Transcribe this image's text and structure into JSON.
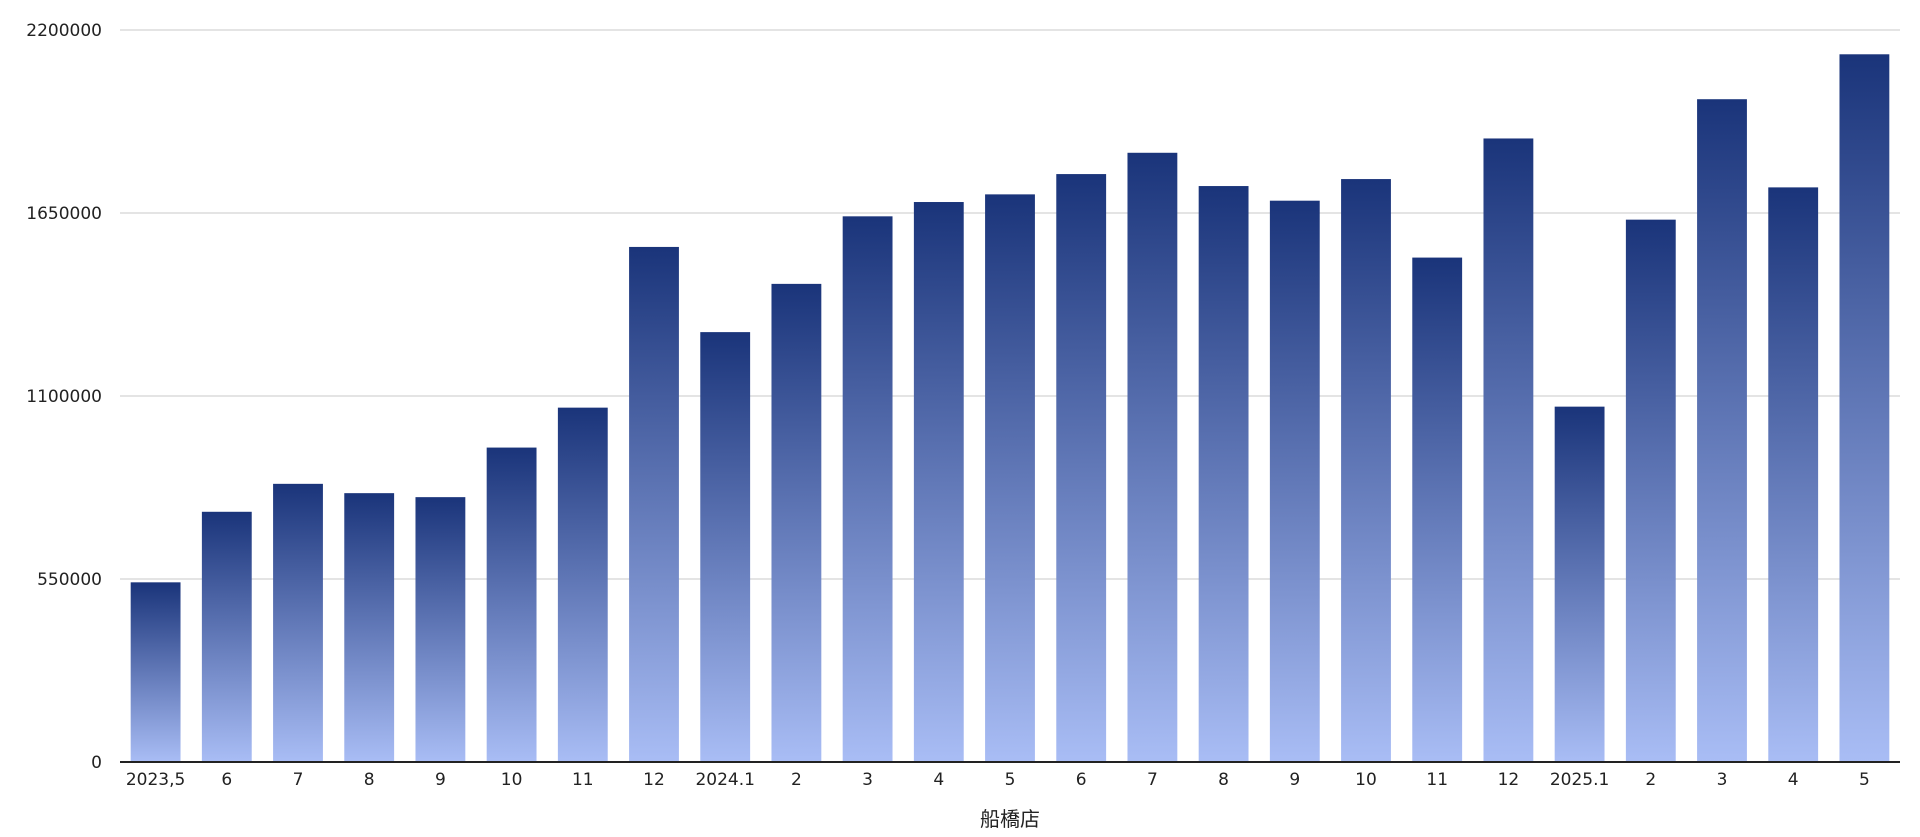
{
  "chart_data": {
    "type": "bar",
    "title": "",
    "xlabel": "船橋店",
    "ylabel": "",
    "categories": [
      "2023,5",
      "6",
      "7",
      "8",
      "9",
      "10",
      "11",
      "12",
      "2024.1",
      "2",
      "3",
      "4",
      "5",
      "6",
      "7",
      "8",
      "9",
      "10",
      "11",
      "12",
      "2025.1",
      "2",
      "3",
      "4",
      "5"
    ],
    "values": [
      540000,
      752000,
      836000,
      808000,
      796000,
      945000,
      1065000,
      1548000,
      1292000,
      1437000,
      1640000,
      1683000,
      1706000,
      1767000,
      1831000,
      1731000,
      1687000,
      1752000,
      1516000,
      1874000,
      1068000,
      1630000,
      1992000,
      1727000,
      2127000
    ],
    "ylim": [
      0,
      2200000
    ],
    "yticks": [
      0,
      550000,
      1100000,
      1650000,
      2200000
    ],
    "ytick_labels": [
      "0",
      "550000",
      "1100000",
      "1650000",
      "2200000"
    ],
    "grid": true,
    "legend": "none",
    "colors": {
      "bar_top": "#1a347a",
      "bar_bottom": "#a9bdf5",
      "grid": "#d4d4d4",
      "axis": "#222222",
      "text": "#222222"
    }
  }
}
